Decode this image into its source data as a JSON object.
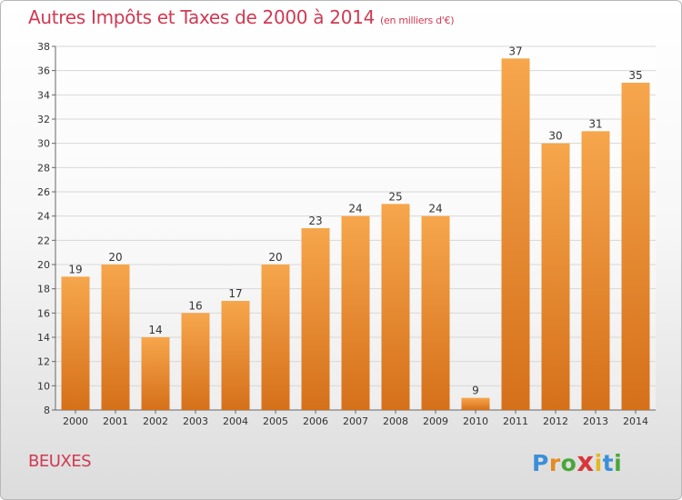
{
  "header": {
    "title": "Autres Impôts et Taxes de 2000 à 2014",
    "unit": "(en milliers d'€)"
  },
  "footer": {
    "commune": "BEUXES",
    "logo_letters": [
      "P",
      "r",
      "o",
      "x",
      "i",
      "t",
      "i"
    ],
    "logo_colors": [
      "#3a8fd8",
      "#e58a1f",
      "#4aa63a",
      "#d8373a",
      "#e5b71f",
      "#3a8fd8",
      "#4aa63a"
    ]
  },
  "colors": {
    "title": "#d03a52",
    "bar_top": "#f6a64c",
    "bar_bottom": "#d5701a",
    "grid": "#d8d8d8",
    "axis": "#666666"
  },
  "chart_data": {
    "type": "bar",
    "categories": [
      "2000",
      "2001",
      "2002",
      "2003",
      "2004",
      "2005",
      "2006",
      "2007",
      "2008",
      "2009",
      "2010",
      "2011",
      "2012",
      "2013",
      "2014"
    ],
    "values": [
      19,
      20,
      14,
      16,
      17,
      20,
      23,
      24,
      25,
      24,
      9,
      37,
      30,
      31,
      35
    ],
    "ylim": [
      8,
      38
    ],
    "yticks": [
      8,
      10,
      12,
      14,
      16,
      18,
      20,
      22,
      24,
      26,
      28,
      30,
      32,
      34,
      36,
      38
    ],
    "grid": true,
    "data_labels": true
  }
}
